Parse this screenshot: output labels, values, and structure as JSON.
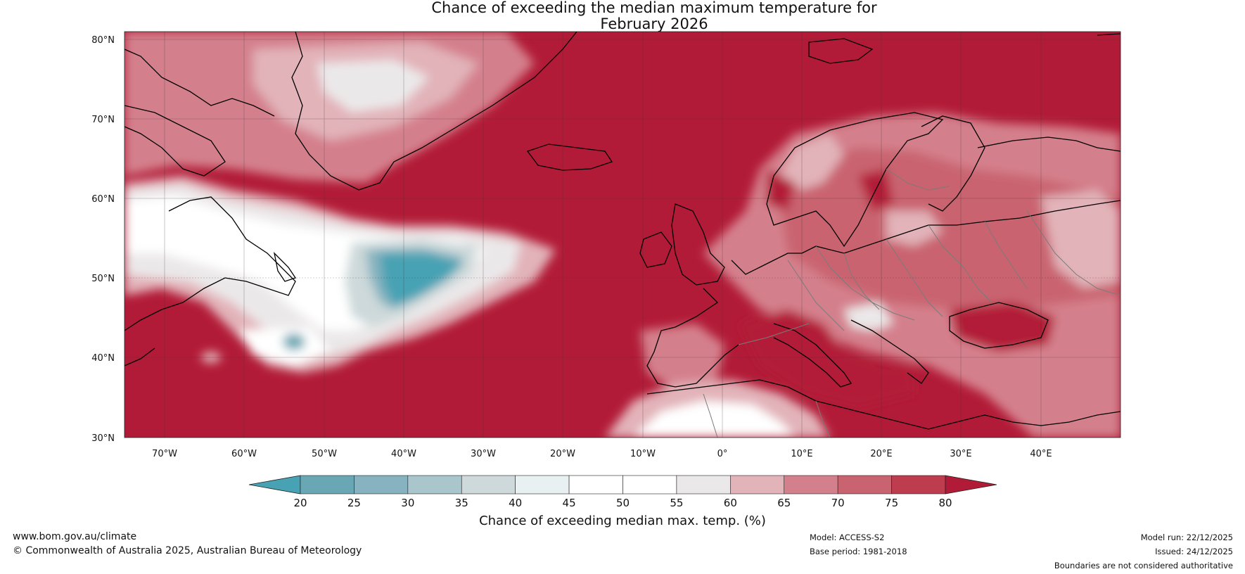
{
  "title": {
    "line1": "Chance of exceeding the median maximum temperature for",
    "line2": "February 2026"
  },
  "map": {
    "lat_ticks": [
      "80°N",
      "70°N",
      "60°N",
      "50°N",
      "40°N",
      "30°N"
    ],
    "lon_ticks": [
      "70°W",
      "60°W",
      "50°W",
      "40°W",
      "30°W",
      "20°W",
      "10°W",
      "0°",
      "10°E",
      "20°E",
      "30°E",
      "40°E"
    ],
    "extent": {
      "lon_min": -75,
      "lon_max": 50,
      "lat_min": 30,
      "lat_max": 81
    }
  },
  "colorbar": {
    "ticks": [
      "20",
      "25",
      "30",
      "35",
      "40",
      "45",
      "50",
      "55",
      "60",
      "65",
      "70",
      "75",
      "80"
    ],
    "colors": [
      "#6aa7b5",
      "#87b3c0",
      "#a9c6cd",
      "#cdd9da",
      "#e9f0f1",
      "#ffffff",
      "#ffffff",
      "#ebe8e9",
      "#e2b3b9",
      "#d4808c",
      "#c9636f",
      "#bd3d4e"
    ],
    "extend_low_color": "#47a2b4",
    "extend_high_color": "#b21b37",
    "label": "Chance of exceeding median max. temp. (%)"
  },
  "footer": {
    "website": "www.bom.gov.au/climate",
    "copyright": "© Commonwealth of Australia 2025, Australian Bureau of Meteorology",
    "model": "Model: ACCESS-S2",
    "base_period": "Base period: 1981-2018",
    "model_run": "Model run: 22/12/2025",
    "issued": "Issued: 24/12/2025",
    "disclaimer": "Boundaries are not considered authoritative"
  }
}
